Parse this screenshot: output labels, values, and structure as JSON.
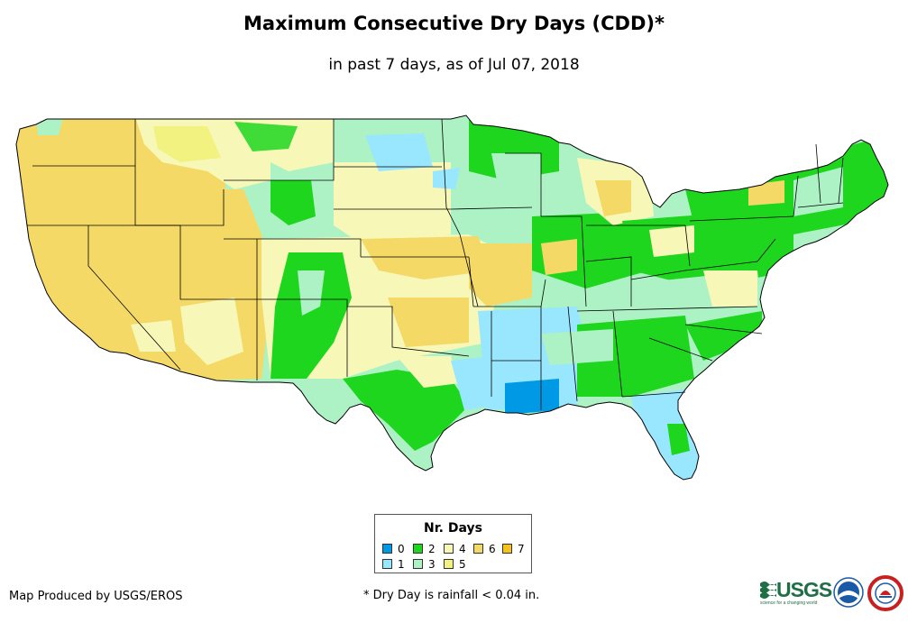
{
  "title": "Maximum Consecutive Dry Days (CDD)*",
  "subtitle": "in past 7 days, as of Jul 07, 2018",
  "legend": {
    "title": "Nr. Days",
    "items": [
      {
        "label": "0",
        "color": "#0099e6"
      },
      {
        "label": "1",
        "color": "#99e6ff"
      },
      {
        "label": "2",
        "color": "#1fd61f"
      },
      {
        "label": "3",
        "color": "#adf2c4"
      },
      {
        "label": "4",
        "color": "#f7f7b8"
      },
      {
        "label": "5",
        "color": "#f2f280"
      },
      {
        "label": "6",
        "color": "#f5d966"
      },
      {
        "label": "7",
        "color": "#f5c21f"
      }
    ]
  },
  "credit": "Map Produced by USGS/EROS",
  "footnote": "* Dry Day is rainfall < 0.04 in.",
  "logos": {
    "usgs": {
      "text": "USGS",
      "tagline": "science for a changing world",
      "color": "#1f6e45"
    },
    "noaa": {
      "text": "NOAA",
      "color": "#1a5aa6"
    },
    "nws": {
      "text": "NATIONAL WEATHER SERVICE",
      "color": "#c8201e"
    }
  },
  "map_colors": {
    "border": "#000000",
    "coast": "#000000"
  }
}
